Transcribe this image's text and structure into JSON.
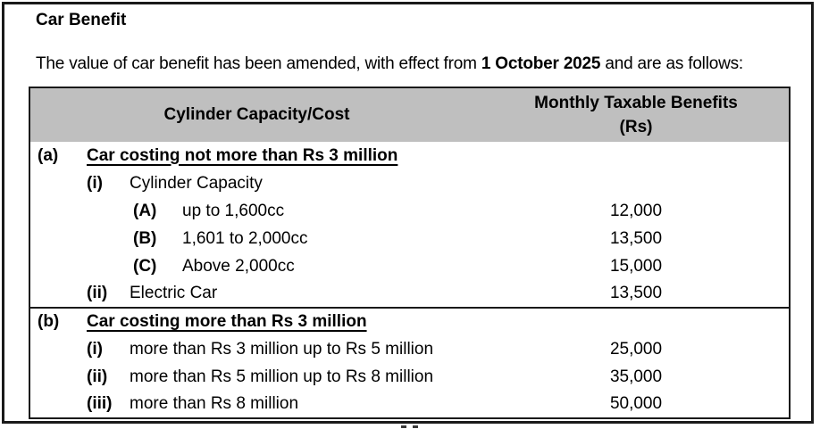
{
  "page": {
    "title": "Car Benefit",
    "intro_prefix": "The value of car benefit has been amended, with effect from ",
    "intro_bold": "1 October 2025",
    "intro_suffix": " and are as follows:"
  },
  "table": {
    "header": {
      "col1": "Cylinder Capacity/Cost",
      "col2_line1": "Monthly Taxable Benefits",
      "col2_line2": "(Rs)"
    },
    "rows": [
      {
        "num": "(a)",
        "text": "Car costing not more than Rs 3 million",
        "value": ""
      },
      {
        "num": "(i)",
        "text": "Cylinder Capacity",
        "value": ""
      },
      {
        "num": "(A)",
        "text": "up to 1,600cc",
        "value": "12,000"
      },
      {
        "num": "(B)",
        "text": "1,601 to 2,000cc",
        "value": "13,500"
      },
      {
        "num": "(C)",
        "text": "Above 2,000cc",
        "value": "15,000"
      },
      {
        "num": "(ii)",
        "text": "Electric Car",
        "value": "13,500"
      },
      {
        "num": "(b)",
        "text": "Car costing more than Rs 3 million",
        "value": ""
      },
      {
        "num": "(i)",
        "text": "more than Rs 3 million up to Rs 5 million",
        "value": "25,000"
      },
      {
        "num": "(ii)",
        "text": "more than Rs 5 million up to Rs 8 million",
        "value": "35,000"
      },
      {
        "num": "(iii)",
        "text": "more than Rs 8 million",
        "value": "50,000"
      }
    ]
  },
  "colors": {
    "header_bg": "#bfbfbf",
    "border": "#1a1a1a",
    "text": "#000000",
    "background": "#ffffff"
  }
}
